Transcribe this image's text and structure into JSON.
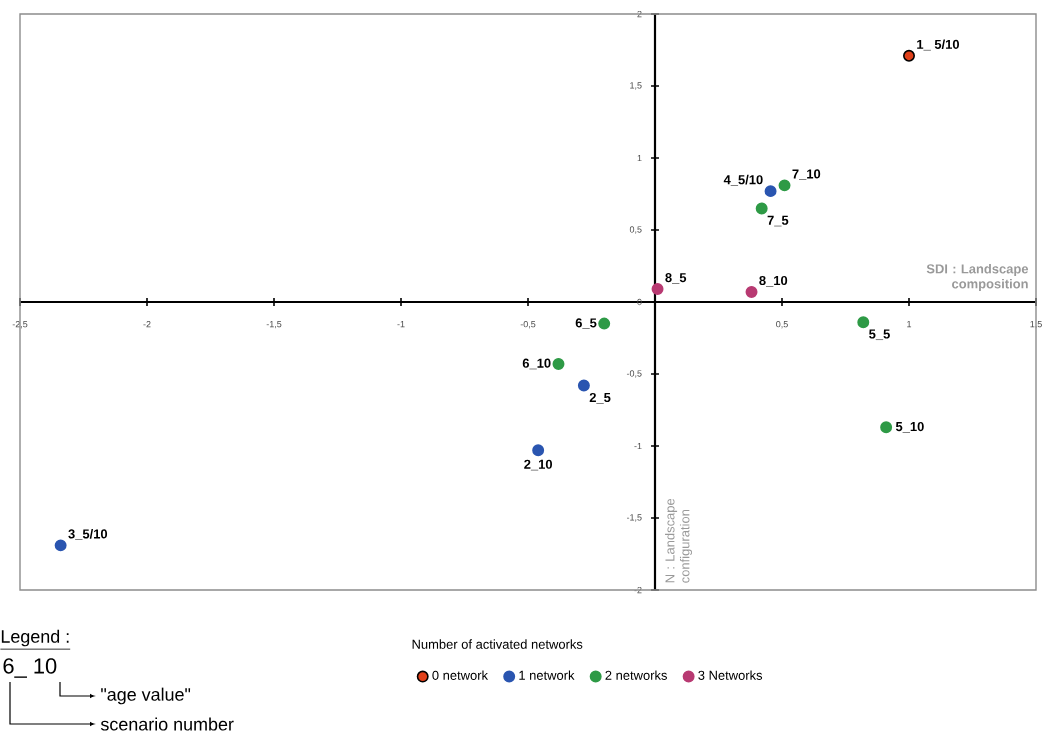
{
  "chart_data": {
    "type": "scatter",
    "xlabel": "SDI : Landscape composition",
    "ylabel": "N : Landscape configuration",
    "legend_title": "Number of activated networks",
    "legend": "bottom",
    "grid": false,
    "xlim": [
      -2.5,
      1.5
    ],
    "ylim": [
      -2,
      2
    ],
    "xticks": [
      {
        "value": -2.5,
        "label": "-2,5"
      },
      -2,
      {
        "value": -1.5,
        "label": "-1,5"
      },
      -1,
      {
        "value": -0.5,
        "label": "-0,5"
      },
      {
        "value": 0,
        "label": null
      },
      {
        "value": 0.5,
        "label": "0,5"
      },
      1,
      {
        "value": 1.5,
        "label": "1,5"
      }
    ],
    "yticks": [
      -2,
      {
        "value": -1.5,
        "label": "-1,5"
      },
      -1,
      {
        "value": -0.5,
        "label": "-0,5"
      },
      0,
      {
        "value": 0.5,
        "label": "0,5"
      },
      1,
      {
        "value": 1.5,
        "label": "1,5"
      },
      2
    ],
    "series": [
      {
        "name": "0 network",
        "color": "#e0401a",
        "x": [
          1.0
        ],
        "values": [
          1.71
        ]
      },
      {
        "name": "1 network",
        "color": "#2a55b0",
        "x": [
          0.455,
          -0.28,
          -0.46,
          -2.34
        ],
        "values": [
          0.77,
          -0.58,
          -1.03,
          -1.69
        ]
      },
      {
        "name": "2 networks",
        "color": "#2e9a46",
        "x": [
          0.51,
          0.42,
          -0.2,
          0.82,
          -0.38,
          0.91
        ],
        "values": [
          0.81,
          0.65,
          -0.15,
          -0.14,
          -0.43,
          -0.87
        ]
      },
      {
        "name": "3 Networks",
        "color": "#b83a72",
        "x": [
          0.01,
          0.38
        ],
        "values": [
          0.09,
          0.07
        ]
      }
    ],
    "annotations": [
      {
        "text": "1_ 5/10",
        "x": 1.0,
        "y": 1.71
      },
      {
        "text": "4_5/10",
        "x": 0.455,
        "y": 0.77
      },
      {
        "text": "7_10",
        "x": 0.51,
        "y": 0.81
      },
      {
        "text": "7_5",
        "x": 0.42,
        "y": 0.65
      },
      {
        "text": "8_5",
        "x": 0.01,
        "y": 0.09
      },
      {
        "text": "8_10",
        "x": 0.38,
        "y": 0.07
      },
      {
        "text": "6_5",
        "x": -0.2,
        "y": -0.15
      },
      {
        "text": "5_5",
        "x": 0.82,
        "y": -0.14
      },
      {
        "text": "6_10",
        "x": -0.38,
        "y": -0.43
      },
      {
        "text": "2_5",
        "x": -0.28,
        "y": -0.58
      },
      {
        "text": "5_10",
        "x": 0.91,
        "y": -0.87
      },
      {
        "text": "2_10",
        "x": -0.46,
        "y": -1.03
      },
      {
        "text": "3_5/10",
        "x": -2.34,
        "y": -1.69
      },
      "Legend :",
      "6_ 10",
      "\"age value\"",
      "scenario number"
    ]
  }
}
